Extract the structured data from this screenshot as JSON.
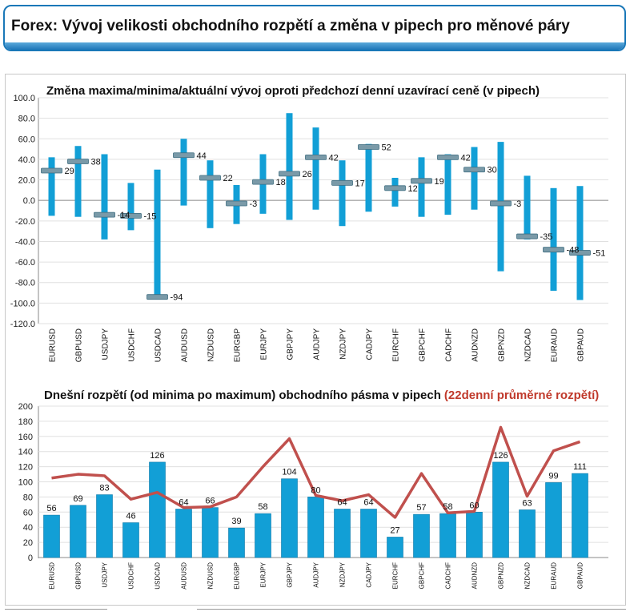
{
  "header": {
    "title": "Forex: Vývoj velikosti obchodního rozpětí a změna v pipech pro měnové páry"
  },
  "colors": {
    "header_border": "#1a78b8",
    "bar_blue": "#129fd6",
    "marker": "#7a9aa8",
    "avg_line": "#c0504d",
    "title_red": "#c0392b"
  },
  "chart_data": [
    {
      "type": "bar",
      "subtype": "floating-range-with-marker",
      "title": "Změna maxima/minima/aktuální vývoj oproti předchozí denní uzavírací ceně (v pipech)",
      "categories": [
        "EURUSD",
        "GBPUSD",
        "USDJPY",
        "USDCHF",
        "USDCAD",
        "AUDUSD",
        "NZDUSD",
        "EURGBP",
        "EURJPY",
        "GBPJPY",
        "AUDJPY",
        "NZDJPY",
        "CADJPY",
        "EURCHF",
        "GBPCHF",
        "CADCHF",
        "AUDNZD",
        "GBPNZD",
        "NZDCAD",
        "EURAUD",
        "GBPAUD"
      ],
      "ylim": [
        -120,
        100
      ],
      "yticks": [
        "100.0",
        "80.0",
        "60.0",
        "40.0",
        "20.0",
        "0.0",
        "-20.0",
        "-40.0",
        "-60.0",
        "-80.0",
        "-100.0",
        "-120.0"
      ],
      "series": [
        {
          "values": [
            42,
            53,
            45,
            17,
            30,
            60,
            39,
            15,
            45,
            85,
            71,
            39,
            55,
            22,
            42,
            45,
            52,
            57,
            24,
            12,
            14
          ]
        },
        {
          "values": [
            -15,
            -16,
            -38,
            -29,
            -95,
            -5,
            -27,
            -23,
            -13,
            -19,
            -9,
            -25,
            -11,
            -6,
            -16,
            -14,
            -9,
            -69,
            -38,
            -88,
            -97
          ]
        },
        {
          "values": [
            29,
            38,
            -14,
            -15,
            -94,
            44,
            22,
            -3,
            18,
            26,
            42,
            17,
            52,
            12,
            19,
            42,
            30,
            -3,
            -35,
            -48,
            -51
          ]
        }
      ],
      "labels": [
        "29",
        "38",
        "-14",
        "-15",
        "-94",
        "44",
        "22",
        "-3",
        "18",
        "26",
        "42",
        "17",
        "52",
        "12",
        "19",
        "42",
        "30",
        "-3",
        "-35",
        "-48",
        "-51"
      ],
      "grid": true
    },
    {
      "type": "bar",
      "title": "Dnešní rozpětí (od minima po maximum) obchodního pásma v pipech",
      "title_highlight": "(22denní průměrné rozpětí)",
      "categories": [
        "EURUSD",
        "GBPUSD",
        "USDJPY",
        "USDCHF",
        "USDCAD",
        "AUDUSD",
        "NZDUSD",
        "EURGBP",
        "EURJPY",
        "GBPJPY",
        "AUDJPY",
        "NZDJPY",
        "CADJPY",
        "EURCHF",
        "GBPCHF",
        "CADCHF",
        "AUDNZD",
        "GBPNZD",
        "NZDCAD",
        "EURAUD",
        "GBPAUD"
      ],
      "ylim": [
        0,
        200
      ],
      "yticks": [
        "0",
        "20",
        "40",
        "60",
        "80",
        "100",
        "120",
        "140",
        "160",
        "180",
        "200"
      ],
      "series": [
        {
          "values": [
            56,
            69,
            83,
            46,
            126,
            64,
            66,
            39,
            58,
            104,
            80,
            64,
            64,
            27,
            57,
            58,
            60,
            126,
            63,
            99,
            111
          ]
        },
        {
          "type": "line",
          "values": [
            105,
            110,
            108,
            77,
            86,
            66,
            67,
            80,
            120,
            157,
            82,
            75,
            83,
            53,
            111,
            59,
            61,
            172,
            81,
            141,
            153
          ]
        }
      ],
      "labels": [
        "56",
        "69",
        "83",
        "46",
        "126",
        "64",
        "66",
        "39",
        "58",
        "104",
        "80",
        "64",
        "64",
        "27",
        "57",
        "58",
        "60",
        "126",
        "63",
        "99",
        "111"
      ],
      "grid": true
    }
  ]
}
